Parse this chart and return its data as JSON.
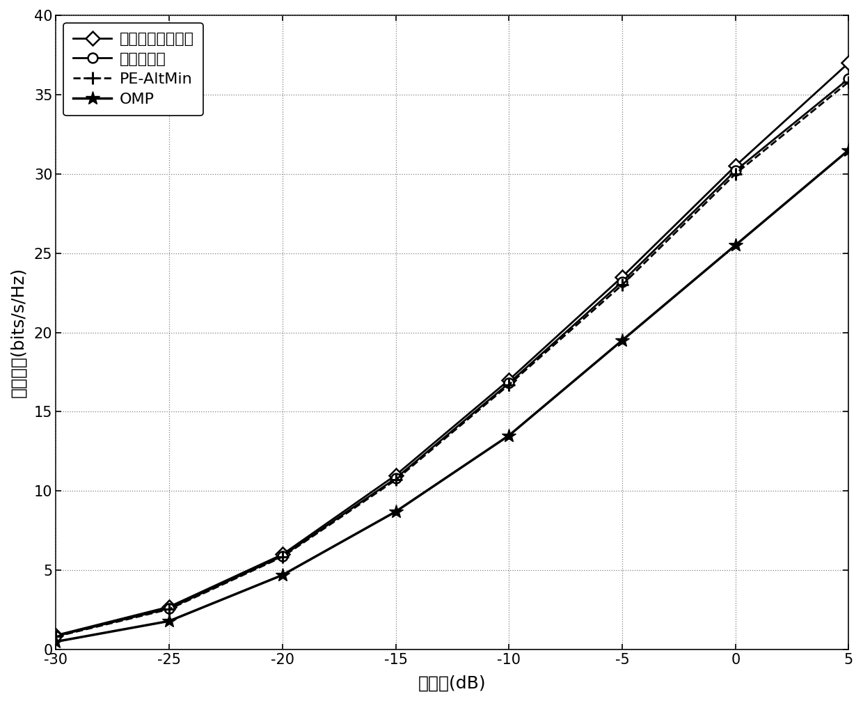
{
  "snr_db": [
    -30,
    -25,
    -20,
    -15,
    -10,
    -5,
    0,
    5
  ],
  "unconstrained": [
    0.9,
    2.7,
    6.0,
    11.0,
    17.0,
    23.5,
    30.5,
    37.0
  ],
  "proposed": [
    0.85,
    2.6,
    5.9,
    10.8,
    16.8,
    23.2,
    30.2,
    36.0
  ],
  "pe_altmin": [
    0.82,
    2.55,
    5.85,
    10.7,
    16.7,
    23.0,
    30.0,
    35.8
  ],
  "omp": [
    0.5,
    1.8,
    4.7,
    8.7,
    13.5,
    19.5,
    25.5,
    31.5
  ],
  "xlabel": "信噪比(dB)",
  "ylabel": "频谱效率(bits/s/Hz)",
  "xlim": [
    -30,
    5
  ],
  "ylim": [
    0,
    40
  ],
  "xticks": [
    -30,
    -25,
    -20,
    -15,
    -10,
    -5,
    0,
    5
  ],
  "yticks": [
    0,
    5,
    10,
    15,
    20,
    25,
    30,
    35,
    40
  ],
  "legend_labels": [
    "无约束数字预编码",
    "本发明方法",
    "PE-AltMin",
    "OMP"
  ],
  "line_color": "#000000",
  "background_color": "#ffffff",
  "axis_fontsize": 18,
  "legend_fontsize": 16,
  "tick_fontsize": 15,
  "linewidth": 2.0,
  "markersize": 10
}
